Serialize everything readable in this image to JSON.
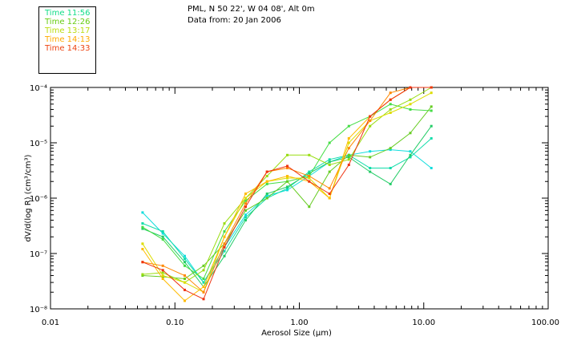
{
  "header": {
    "location": "PML, N 50 22', W 04 08', Alt 0m",
    "date_line": "Data from: 20 Jan 2006"
  },
  "chart_data": {
    "type": "line",
    "title": "",
    "xlabel": "Aerosol Size (µm)",
    "ylabel": "dV/d(log R) (cm³/cm³)",
    "x_scale": "log",
    "y_scale": "log",
    "xlim": [
      0.01,
      100
    ],
    "ylim": [
      1e-08,
      0.0001
    ],
    "grid": false,
    "legend_position": "top-left",
    "x_ticks": [
      {
        "value": 0.01,
        "label": "0.01"
      },
      {
        "value": 0.1,
        "label": "0.10"
      },
      {
        "value": 1,
        "label": "1.00"
      },
      {
        "value": 10,
        "label": "10.00"
      },
      {
        "value": 100,
        "label": "100.00"
      }
    ],
    "y_ticks": [
      {
        "value": 1e-08,
        "label": "10⁻⁸"
      },
      {
        "value": 1e-07,
        "label": "10⁻⁷"
      },
      {
        "value": 1e-06,
        "label": "10⁻⁶"
      },
      {
        "value": 1e-05,
        "label": "10⁻⁵"
      },
      {
        "value": 0.0001,
        "label": "10⁻⁴"
      }
    ],
    "x": [
      0.055,
      0.08,
      0.12,
      0.17,
      0.25,
      0.37,
      0.55,
      0.8,
      1.2,
      1.75,
      2.5,
      3.7,
      5.4,
      7.8,
      11.5
    ],
    "legend": [
      {
        "label": "Time 11:56",
        "color": "#11dd88"
      },
      {
        "label": "Time 12:26",
        "color": "#66cc11"
      },
      {
        "label": "Time 13:17",
        "color": "#bbdd11"
      },
      {
        "label": "Time 14:13",
        "color": "#ffaa00"
      },
      {
        "label": "Time 14:33",
        "color": "#ee4411"
      }
    ],
    "series": [
      {
        "color": "#11dddd",
        "values": [
          5.5e-07,
          2.3e-07,
          9e-08,
          3e-08,
          1.3e-07,
          5e-07,
          1.1e-06,
          1.4e-06,
          2.5e-06,
          4.5e-06,
          6e-06,
          7e-06,
          7.5e-06,
          7e-06,
          3.5e-06
        ]
      },
      {
        "color": "#11ddaa",
        "values": [
          3.5e-07,
          2.5e-07,
          8e-08,
          3e-08,
          1.1e-07,
          4.5e-07,
          1e-06,
          1.5e-06,
          3e-06,
          5e-06,
          6e-06,
          3.5e-06,
          3.5e-06,
          5.5e-06,
          1.2e-05
        ]
      },
      {
        "color": "#22cc66",
        "values": [
          2.8e-07,
          2e-07,
          7e-08,
          2.5e-08,
          9e-08,
          4e-07,
          1.2e-06,
          1.6e-06,
          2.8e-06,
          4.5e-06,
          5.5e-06,
          3e-06,
          1.8e-06,
          6e-06,
          2e-05
        ]
      },
      {
        "color": "#44dd44",
        "values": [
          3e-07,
          1.8e-07,
          6e-08,
          3.5e-08,
          2.5e-07,
          9e-07,
          1.8e-06,
          2e-06,
          2.5e-06,
          1e-05,
          2e-05,
          3e-05,
          5e-05,
          4e-05,
          3.8e-05
        ]
      },
      {
        "color": "#66cc22",
        "values": [
          4e-08,
          3.8e-08,
          3.5e-08,
          6e-08,
          1.5e-07,
          6e-07,
          1e-06,
          2e-06,
          7e-07,
          3e-06,
          6e-06,
          5.5e-06,
          8e-06,
          1.5e-05,
          4.5e-05
        ]
      },
      {
        "color": "#99dd11",
        "values": [
          4.2e-08,
          4.5e-08,
          3e-08,
          5e-08,
          3.5e-07,
          1e-06,
          2.5e-06,
          6e-06,
          6e-06,
          4e-06,
          5e-06,
          2e-05,
          4e-05,
          6e-05,
          0.0001
        ]
      },
      {
        "color": "#dddd00",
        "values": [
          1.5e-07,
          4e-08,
          3e-08,
          2e-08,
          2e-07,
          1e-06,
          2e-06,
          2.3e-06,
          2.3e-06,
          1e-06,
          1e-05,
          2.5e-05,
          3.5e-05,
          5e-05,
          8e-05
        ]
      },
      {
        "color": "#ffbb00",
        "values": [
          1.2e-07,
          3.5e-08,
          1.4e-08,
          2.5e-08,
          2e-07,
          1.2e-06,
          2e-06,
          2.5e-06,
          2e-06,
          1e-06,
          1.2e-05,
          3e-05,
          6e-05,
          0.0001,
          0.0001
        ]
      },
      {
        "color": "#ff8800",
        "values": [
          7e-08,
          6e-08,
          4e-08,
          2e-08,
          1.5e-07,
          8e-07,
          3e-06,
          3.5e-06,
          2.5e-06,
          1.5e-06,
          8e-06,
          2.5e-05,
          8e-05,
          0.0001,
          0.0001
        ]
      },
      {
        "color": "#ee3311",
        "values": [
          7e-08,
          5e-08,
          2.2e-08,
          1.5e-08,
          1.3e-07,
          7e-07,
          3e-06,
          3.8e-06,
          2e-06,
          1.2e-06,
          4e-06,
          3e-05,
          6e-05,
          0.00013,
          0.0001
        ]
      }
    ]
  }
}
